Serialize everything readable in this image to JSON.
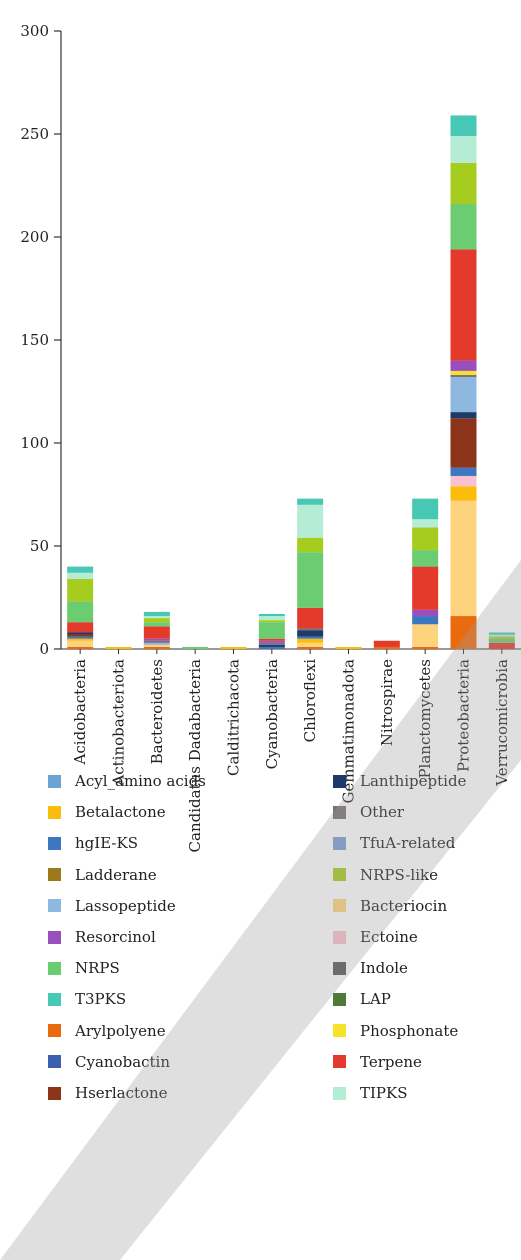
{
  "chart_data": {
    "type": "bar",
    "stacked": true,
    "title": "",
    "xlabel": "",
    "ylabel": "",
    "ylim": [
      0,
      300
    ],
    "yticks": [
      0,
      50,
      100,
      150,
      200,
      250,
      300
    ],
    "grid": false,
    "legend_position": "bottom",
    "categories": [
      "Acidobacteria",
      "Actinobacteriota",
      "Bacteroidetes",
      "Candidatus Dadabacteria",
      "Calditrichacota",
      "Cyanobacteria",
      "Chloroflexi",
      "Gemmatimonadota",
      "Nitrospirae",
      "Planctomycetes",
      "Proteobacteria",
      "Verrucomicrobia"
    ],
    "series": [
      {
        "name": "Arylpolyene",
        "color": "#ea6a10",
        "values": [
          1,
          0,
          1,
          0,
          0,
          0,
          1,
          0,
          1,
          1,
          16,
          0
        ]
      },
      {
        "name": "Bacteriocin",
        "color": "#fdd37e",
        "values": [
          3,
          0,
          1,
          0,
          0,
          0,
          2,
          0,
          0,
          11,
          56,
          0
        ]
      },
      {
        "name": "Betalactone",
        "color": "#fbbd09",
        "values": [
          1,
          1,
          0,
          0,
          1,
          0,
          2,
          1,
          0,
          0,
          7,
          0
        ]
      },
      {
        "name": "Ectoine",
        "color": "#f9c1cf",
        "values": [
          0,
          0,
          0,
          0,
          0,
          0,
          0,
          0,
          0,
          0,
          5,
          0
        ]
      },
      {
        "name": "hgIE-KS",
        "color": "#3c78c0",
        "values": [
          1,
          0,
          0,
          0,
          0,
          1,
          1,
          0,
          0,
          4,
          4,
          0
        ]
      },
      {
        "name": "Hserlactone",
        "color": "#8b341a",
        "values": [
          1,
          0,
          0,
          0,
          0,
          0,
          0,
          0,
          0,
          0,
          24,
          0
        ]
      },
      {
        "name": "Lanthipeptide",
        "color": "#1e3a6b",
        "values": [
          1,
          0,
          0,
          0,
          0,
          1,
          3,
          0,
          0,
          0,
          3,
          0
        ]
      },
      {
        "name": "Lassopeptide",
        "color": "#8fb8e0",
        "values": [
          0,
          0,
          1,
          0,
          0,
          0,
          0,
          0,
          0,
          0,
          17,
          0
        ]
      },
      {
        "name": "Other",
        "color": "#7a7076",
        "values": [
          0,
          0,
          1,
          0,
          0,
          1,
          1,
          0,
          0,
          0,
          1,
          0
        ]
      },
      {
        "name": "Phosphonate",
        "color": "#f5e22a",
        "values": [
          0,
          0,
          0,
          0,
          0,
          0,
          0,
          0,
          0,
          0,
          2,
          0
        ]
      },
      {
        "name": "Resorcinol",
        "color": "#9a4fbf",
        "values": [
          0,
          0,
          1,
          0,
          0,
          1,
          0,
          0,
          0,
          3,
          5,
          0
        ]
      },
      {
        "name": "Terpene",
        "color": "#e33a2c",
        "values": [
          5,
          0,
          6,
          0,
          0,
          1,
          10,
          0,
          3,
          21,
          54,
          3
        ]
      },
      {
        "name": "NRPS",
        "color": "#6ccc71",
        "values": [
          10,
          0,
          2,
          1,
          0,
          8,
          27,
          0,
          0,
          8,
          22,
          2
        ]
      },
      {
        "name": "NRPS-like",
        "color": "#a7cc20",
        "values": [
          11,
          0,
          2,
          0,
          0,
          1,
          7,
          0,
          0,
          11,
          20,
          1
        ]
      },
      {
        "name": "TIPKS",
        "color": "#b4ecd6",
        "values": [
          3,
          0,
          1,
          0,
          0,
          2,
          16,
          0,
          0,
          4,
          13,
          1
        ]
      },
      {
        "name": "T3PKS",
        "color": "#46c8b4",
        "values": [
          3,
          0,
          2,
          0,
          0,
          1,
          3,
          0,
          0,
          10,
          10,
          1
        ]
      }
    ]
  },
  "legend": {
    "items": [
      {
        "label": "Acyl_amino acids",
        "color": "#6ba3d3"
      },
      {
        "label": "Lanthipeptide",
        "color": "#1e3a6b"
      },
      {
        "label": "Betalactone",
        "color": "#fbbd09"
      },
      {
        "label": "Other",
        "color": "#7a7076"
      },
      {
        "label": "hgIE-KS",
        "color": "#3c78c0"
      },
      {
        "label": "TfuA-related",
        "color": "#7b9ed6"
      },
      {
        "label": "Ladderane",
        "color": "#9a7a1c"
      },
      {
        "label": "NRPS-like",
        "color": "#a7cc20"
      },
      {
        "label": "Lassopeptide",
        "color": "#8fb8e0"
      },
      {
        "label": "Bacteriocin",
        "color": "#fdd37e"
      },
      {
        "label": "Resorcinol",
        "color": "#9a4fbf"
      },
      {
        "label": "Ectoine",
        "color": "#f9c1cf"
      },
      {
        "label": "NRPS",
        "color": "#6ccc71"
      },
      {
        "label": "Indole",
        "color": "#555555"
      },
      {
        "label": "T3PKS",
        "color": "#46c8b4"
      },
      {
        "label": "LAP",
        "color": "#4e7a3a"
      },
      {
        "label": "Arylpolyene",
        "color": "#ea6a10"
      },
      {
        "label": "Phosphonate",
        "color": "#f5e22a"
      },
      {
        "label": "Cyanobactin",
        "color": "#3d5fb0"
      },
      {
        "label": "Terpene",
        "color": "#e33a2c"
      },
      {
        "label": "Hserlactone",
        "color": "#8b341a"
      },
      {
        "label": "TIPKS",
        "color": "#b4ecd6"
      }
    ]
  }
}
